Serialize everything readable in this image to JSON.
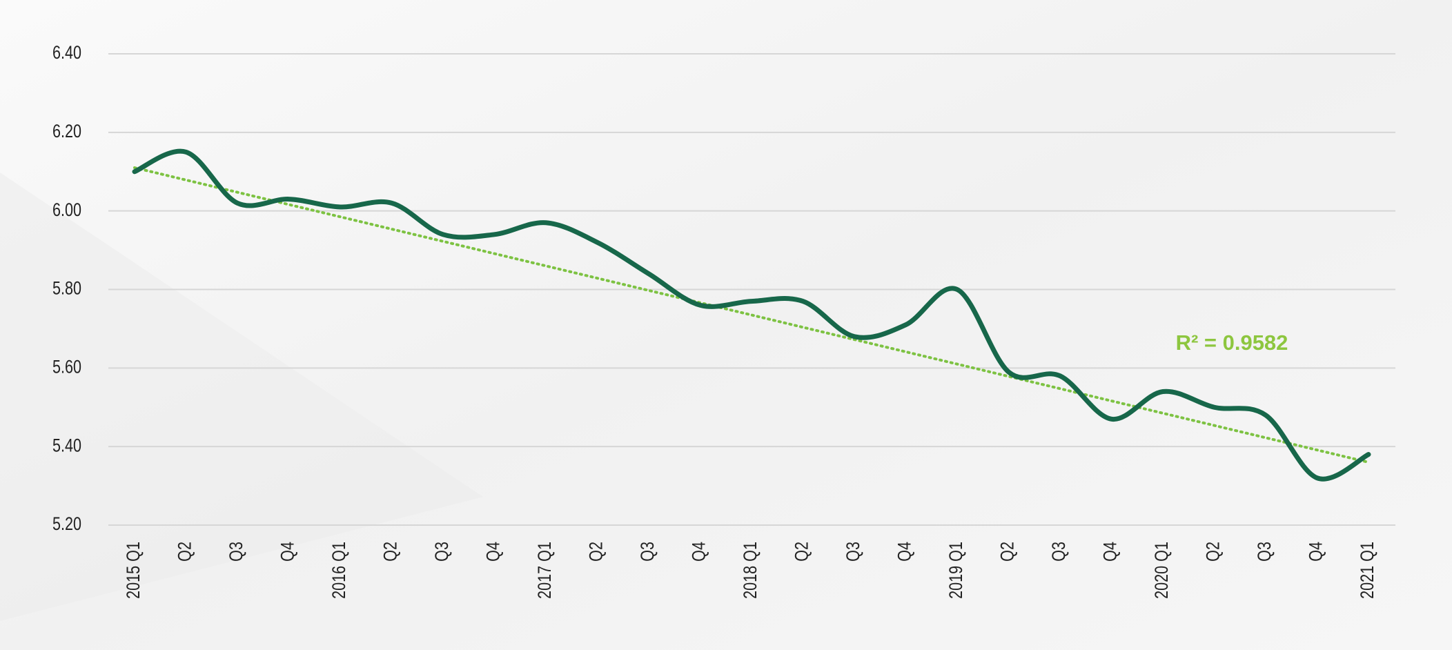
{
  "chart_data": {
    "type": "line",
    "categories": [
      "2015 Q1",
      "Q2",
      "Q3",
      "Q4",
      "2016 Q1",
      "Q2",
      "Q3",
      "Q4",
      "2017 Q1",
      "Q2",
      "Q3",
      "Q4",
      "2018 Q1",
      "Q2",
      "Q3",
      "Q4",
      "2019 Q1",
      "Q2",
      "Q3",
      "Q4",
      "2020 Q1",
      "Q2",
      "Q3",
      "Q4",
      "2021 Q1"
    ],
    "series": [
      {
        "color": "#17674a",
        "values": [
          6.1,
          6.15,
          6.02,
          6.03,
          6.01,
          6.02,
          5.94,
          5.94,
          5.97,
          5.92,
          5.84,
          5.76,
          5.77,
          5.77,
          5.68,
          5.71,
          5.8,
          5.59,
          5.58,
          5.47,
          5.54,
          5.5,
          5.48,
          5.32,
          5.38
        ]
      }
    ],
    "trendline": {
      "color": "#7dc242",
      "values": [
        6.11,
        5.36
      ]
    },
    "annotation": "R² = 0.9582",
    "ylim": [
      5.2,
      6.4
    ],
    "yticks": [
      {
        "value": 5.2,
        "label": "5.20"
      },
      {
        "value": 5.4,
        "label": "5.40"
      },
      {
        "value": 5.6,
        "label": "5.60"
      },
      {
        "value": 5.8,
        "label": "5.80"
      },
      {
        "value": 6.0,
        "label": "6.00"
      },
      {
        "value": 6.2,
        "label": "6.20"
      },
      {
        "value": 6.4,
        "label": "6.40"
      }
    ],
    "grid": true
  }
}
